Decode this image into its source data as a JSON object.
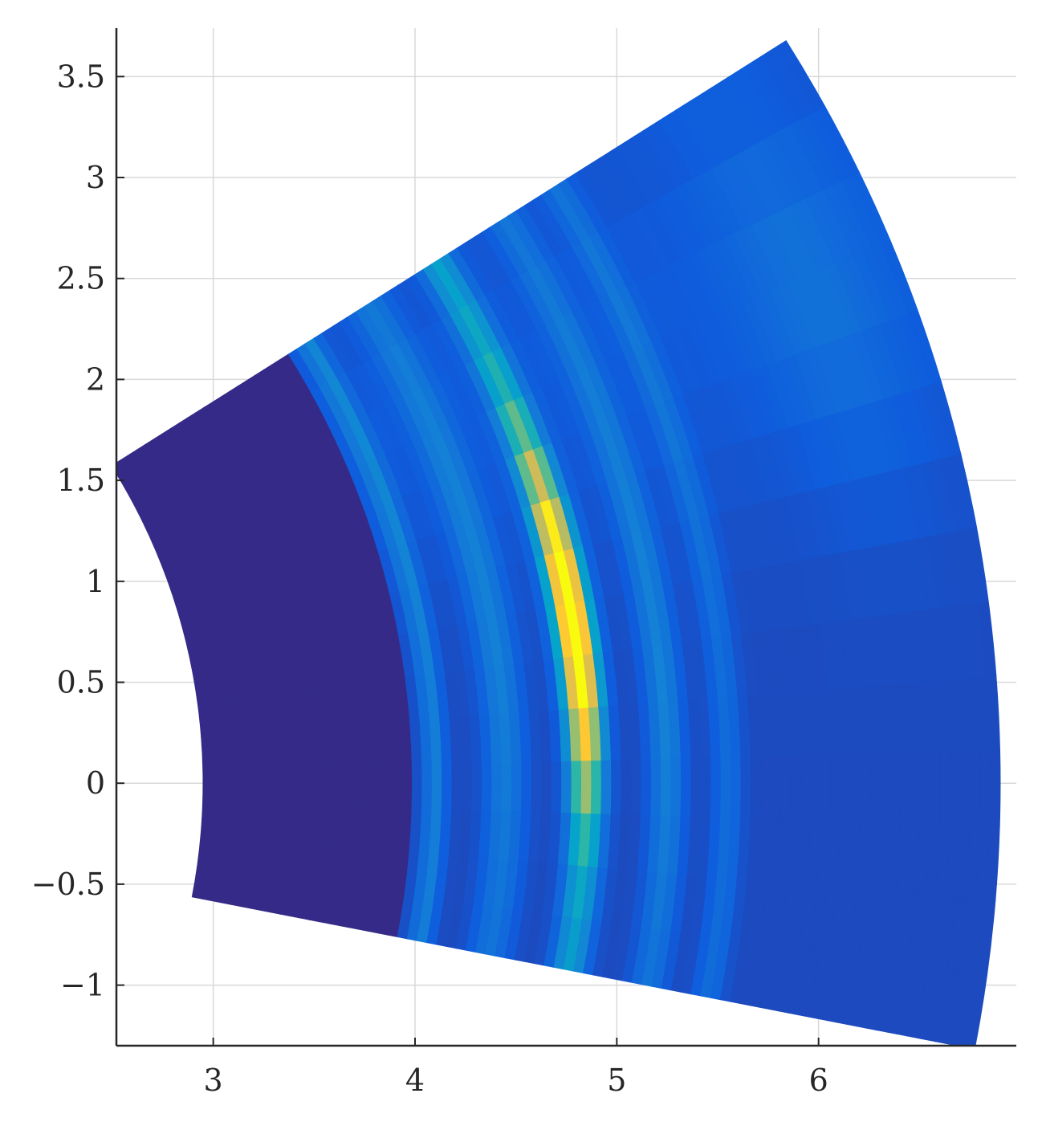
{
  "chart_data": {
    "type": "heatmap",
    "title": "",
    "xlabel": "",
    "ylabel": "",
    "xlim": [
      2.52,
      6.98
    ],
    "ylim": [
      -1.3,
      3.74
    ],
    "grid": true,
    "xticks": [
      3,
      4,
      5,
      6
    ],
    "yticks": [
      -1,
      -0.5,
      0,
      0.5,
      1,
      1.5,
      2,
      2.5,
      3,
      3.5
    ],
    "xtick_labels": [
      "3",
      "4",
      "5",
      "6"
    ],
    "ytick_labels": [
      "−1",
      "−0.5",
      "0",
      "0.5",
      "1",
      "1.5",
      "2",
      "2.5",
      "3",
      "3.5"
    ],
    "colormap": "parula",
    "colormap_stops": [
      "#352a87",
      "#0f5cdd",
      "#1481d6",
      "#06a4ca",
      "#2eb7a4",
      "#87bf77",
      "#d1bb59",
      "#fec832",
      "#f9fb0e"
    ],
    "sector": {
      "r_range": [
        2.95,
        6.9
      ],
      "theta_range_deg": [
        -11,
        32.2
      ],
      "radial_bins": 80,
      "angular_bins": 14
    },
    "peak": {
      "r": 4.85,
      "theta_deg": 9.5,
      "intensity": 1.0
    }
  }
}
